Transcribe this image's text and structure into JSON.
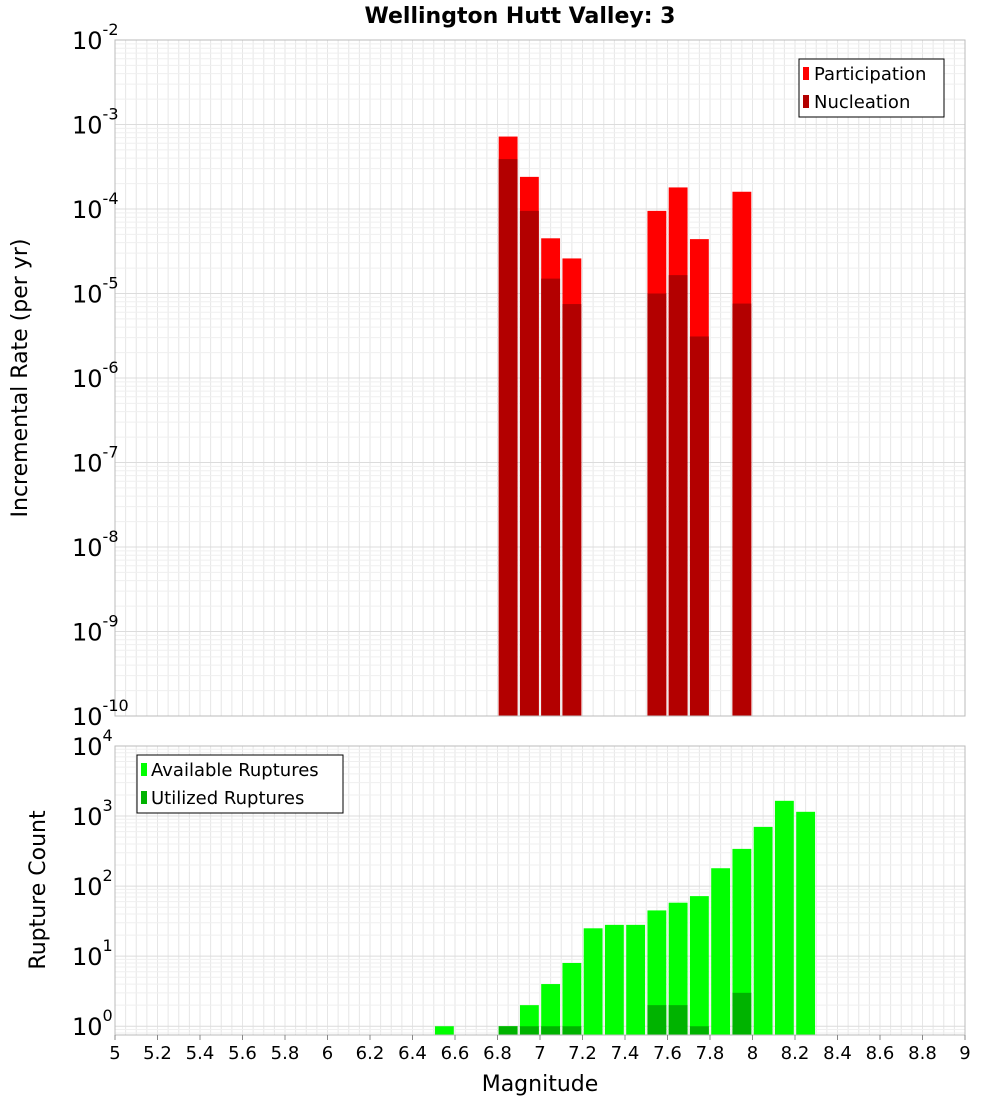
{
  "title": "Wellington Hutt Valley: 3",
  "x_tick_labels": [
    "5",
    "5.2",
    "5.4",
    "5.6",
    "5.8",
    "6",
    "6.2",
    "6.4",
    "6.6",
    "6.8",
    "7",
    "7.2",
    "7.4",
    "7.6",
    "7.8",
    "8",
    "8.2",
    "8.4",
    "8.6",
    "8.8",
    "9"
  ],
  "xlabel": "Magnitude",
  "colors": {
    "participation": "#ff0000",
    "nucleation": "#b30000",
    "available": "#00ff00",
    "utilized": "#00b300",
    "grid": "#e6e6e6",
    "frame": "#bbbbbb"
  },
  "chart_data": [
    {
      "type": "bar",
      "title": "Wellington Hutt Valley: 3",
      "xlabel": "",
      "ylabel": "Incremental Rate (per yr)",
      "xlim": [
        5,
        9
      ],
      "ylim": [
        1e-10,
        0.01
      ],
      "yscale": "log",
      "bin_width": 0.1,
      "legend": {
        "position": "top-right",
        "entries": [
          "Participation",
          "Nucleation"
        ]
      },
      "y_tick_labels": [
        {
          "base": "10",
          "exp": "-10"
        },
        {
          "base": "10",
          "exp": "-9"
        },
        {
          "base": "10",
          "exp": "-8"
        },
        {
          "base": "10",
          "exp": "-7"
        },
        {
          "base": "10",
          "exp": "-6"
        },
        {
          "base": "10",
          "exp": "-5"
        },
        {
          "base": "10",
          "exp": "-4"
        },
        {
          "base": "10",
          "exp": "-3"
        },
        {
          "base": "10",
          "exp": "-2"
        }
      ],
      "x": [
        6.85,
        6.95,
        7.05,
        7.15,
        7.55,
        7.65,
        7.75,
        7.95
      ],
      "series": [
        {
          "name": "Participation",
          "values": [
            0.00072,
            0.00024,
            4.5e-05,
            2.6e-05,
            9.5e-05,
            0.00018,
            4.4e-05,
            0.00016
          ]
        },
        {
          "name": "Nucleation",
          "values": [
            0.00039,
            9.5e-05,
            1.5e-05,
            7.5e-06,
            1e-05,
            1.65e-05,
            3.1e-06,
            7.6e-06
          ]
        }
      ]
    },
    {
      "type": "bar",
      "title": "",
      "xlabel": "Magnitude",
      "ylabel": "Rupture Count",
      "xlim": [
        5,
        9
      ],
      "ylim": [
        0.75,
        10000
      ],
      "yscale": "log",
      "bin_width": 0.1,
      "legend": {
        "position": "top-left",
        "entries": [
          "Available Ruptures",
          "Utilized Ruptures"
        ]
      },
      "y_tick_labels": [
        {
          "base": "10",
          "exp": "0"
        },
        {
          "base": "10",
          "exp": "1"
        },
        {
          "base": "10",
          "exp": "2"
        },
        {
          "base": "10",
          "exp": "3"
        },
        {
          "base": "10",
          "exp": "4"
        }
      ],
      "x": [
        6.55,
        6.85,
        6.95,
        7.05,
        7.15,
        7.25,
        7.35,
        7.45,
        7.55,
        7.65,
        7.75,
        7.85,
        7.95,
        8.05,
        8.15,
        8.25
      ],
      "series": [
        {
          "name": "Available Ruptures",
          "values": [
            1,
            1,
            2,
            4,
            8,
            25,
            28,
            28,
            45,
            58,
            72,
            180,
            340,
            700,
            1650,
            1150
          ]
        },
        {
          "name": "Utilized Ruptures",
          "values": [
            0,
            1,
            1,
            1,
            1,
            0,
            0,
            0,
            2,
            2,
            1,
            0,
            3,
            0,
            0,
            0
          ]
        }
      ]
    }
  ]
}
